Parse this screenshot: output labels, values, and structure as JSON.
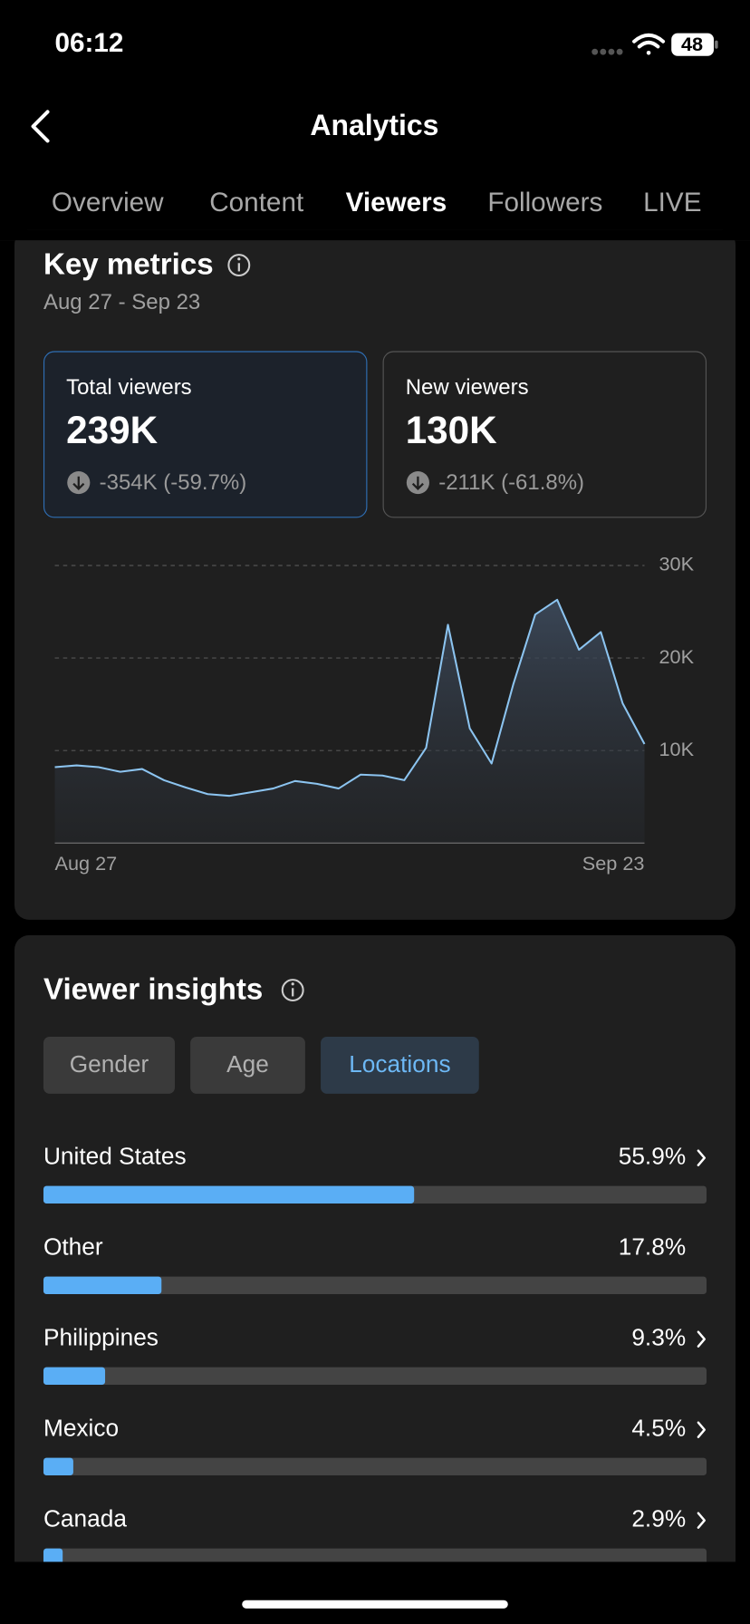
{
  "status_bar": {
    "time": "06:12",
    "battery": "48"
  },
  "header": {
    "title": "Analytics"
  },
  "tabs": {
    "items": [
      "Overview",
      "Content",
      "Viewers",
      "Followers",
      "LIVE"
    ],
    "selected": 2
  },
  "key_metrics": {
    "title": "Key metrics",
    "date_range": "Aug 27 - Sep 23",
    "cards": [
      {
        "label": "Total viewers",
        "value": "239K",
        "change": "-354K (-59.7%)",
        "selected": true
      },
      {
        "label": "New viewers",
        "value": "130K",
        "change": "-211K (-61.8%)",
        "selected": false
      }
    ]
  },
  "viewer_insights": {
    "title": "Viewer insights",
    "filters": [
      "Gender",
      "Age",
      "Locations"
    ],
    "selected": 2
  },
  "chart_data": [
    {
      "type": "line",
      "categories": [
        "Aug 27",
        null,
        null,
        null,
        null,
        null,
        null,
        null,
        null,
        null,
        null,
        null,
        null,
        null,
        null,
        null,
        null,
        null,
        null,
        null,
        null,
        null,
        null,
        null,
        null,
        null,
        null,
        "Sep 23"
      ],
      "values": [
        8200,
        8400,
        8200,
        7700,
        8000,
        6800,
        6000,
        5300,
        5100,
        5500,
        5900,
        6700,
        6400,
        5900,
        7400,
        7300,
        6800,
        10300,
        23600,
        12400,
        8600,
        17200,
        24700,
        26300,
        20900,
        22800,
        15100,
        10700
      ],
      "color": "#8cc4f0",
      "ylim": [
        0,
        30000
      ],
      "yticks": [
        {
          "value": 10000,
          "label": "10K"
        },
        {
          "value": 20000,
          "label": "20K"
        },
        {
          "value": 30000,
          "label": "30K"
        }
      ],
      "grid": true
    },
    {
      "type": "bar",
      "orientation": "horizontal",
      "categories": [
        "United States",
        "Other",
        "Philippines",
        "Mexico",
        "Canada"
      ],
      "values": [
        55.9,
        17.8,
        9.3,
        4.5,
        2.9
      ],
      "value_labels": [
        "55.9%",
        "17.8%",
        "9.3%",
        "4.5%",
        "2.9%"
      ],
      "links": [
        true,
        false,
        true,
        true,
        true
      ],
      "color": "#5aaef5",
      "xlim": [
        0,
        100
      ]
    }
  ]
}
